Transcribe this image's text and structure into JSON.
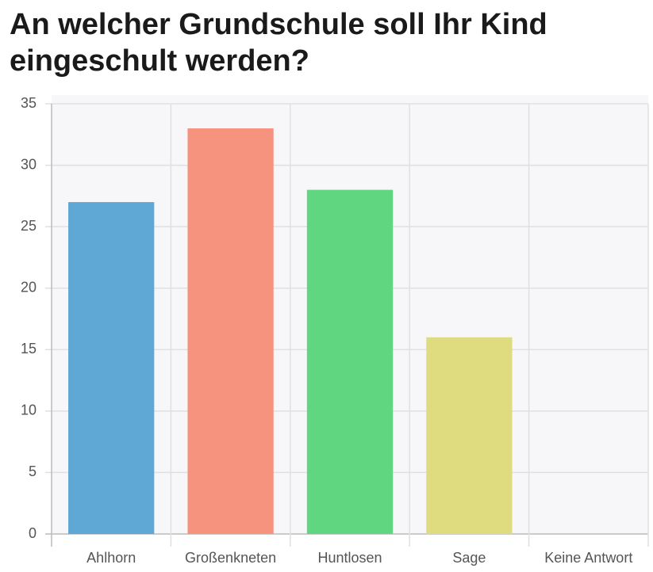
{
  "chart_data": {
    "type": "bar",
    "title": "An welcher Grundschule soll Ihr Kind eingeschult werden?",
    "categories": [
      "Ahlhorn",
      "Großenkneten",
      "Huntlosen",
      "Sage",
      "Keine Antwort"
    ],
    "values": [
      27,
      33,
      28,
      16,
      0
    ],
    "colors": [
      "#5fa8d6",
      "#f5937f",
      "#5fd67f",
      "#dfdb7f",
      "#c9cbcf"
    ],
    "ylim": [
      0,
      35
    ],
    "yticks": [
      0,
      5,
      10,
      15,
      20,
      25,
      30,
      35
    ],
    "grid": true
  }
}
